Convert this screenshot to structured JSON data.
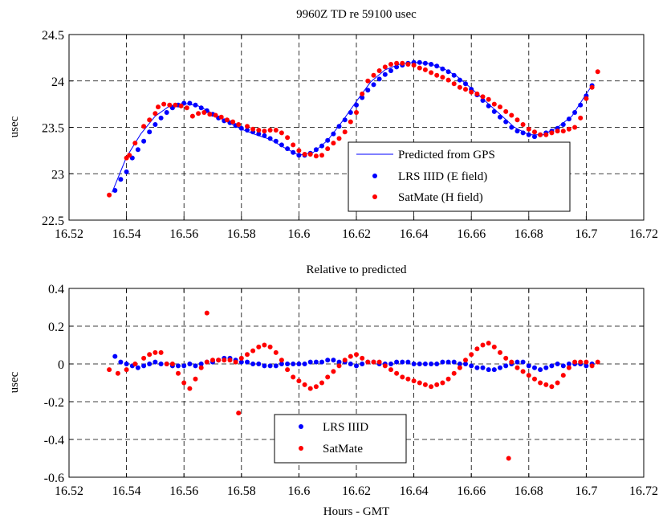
{
  "chart_data": [
    {
      "type": "scatter",
      "title": "9960Z TD re 59100 usec",
      "xlabel": "",
      "ylabel": "usec",
      "xlim": [
        16.52,
        16.72
      ],
      "ylim": [
        22.5,
        24.5
      ],
      "x_ticks": [
        "16.52",
        "16.54",
        "16.56",
        "16.58",
        "16.6",
        "16.62",
        "16.64",
        "16.66",
        "16.68",
        "16.7",
        "16.72"
      ],
      "y_ticks": [
        "22.5",
        "23",
        "23.5",
        "24",
        "24.5"
      ],
      "grid": true,
      "legend_position": "bottom-right",
      "series": [
        {
          "name": "Predicted from GPS",
          "kind": "line",
          "color": "#0000ff",
          "x": [
            16.535,
            16.54,
            16.545,
            16.55,
            16.555,
            16.56,
            16.565,
            16.57,
            16.575,
            16.58,
            16.585,
            16.59,
            16.595,
            16.6,
            16.605,
            16.61,
            16.615,
            16.62,
            16.625,
            16.63,
            16.635,
            16.64,
            16.645,
            16.65,
            16.655,
            16.66,
            16.665,
            16.67,
            16.675,
            16.68,
            16.685,
            16.69,
            16.695,
            16.7,
            16.702
          ],
          "y": [
            22.8,
            23.18,
            23.43,
            23.62,
            23.73,
            23.76,
            23.73,
            23.65,
            23.56,
            23.48,
            23.42,
            23.37,
            23.28,
            23.2,
            23.23,
            23.36,
            23.56,
            23.78,
            23.99,
            24.12,
            24.18,
            24.2,
            24.19,
            24.14,
            24.05,
            23.92,
            23.78,
            23.64,
            23.5,
            23.42,
            23.42,
            23.5,
            23.62,
            23.86,
            23.95
          ]
        },
        {
          "name": "LRS IIID (E field)",
          "kind": "scatter",
          "color": "#0000ff",
          "x": [
            16.536,
            16.538,
            16.54,
            16.542,
            16.544,
            16.546,
            16.548,
            16.55,
            16.552,
            16.554,
            16.556,
            16.558,
            16.56,
            16.562,
            16.564,
            16.566,
            16.568,
            16.57,
            16.572,
            16.574,
            16.576,
            16.578,
            16.58,
            16.582,
            16.584,
            16.586,
            16.588,
            16.59,
            16.592,
            16.594,
            16.596,
            16.598,
            16.6,
            16.602,
            16.604,
            16.606,
            16.608,
            16.61,
            16.612,
            16.614,
            16.616,
            16.618,
            16.62,
            16.622,
            16.624,
            16.626,
            16.628,
            16.63,
            16.632,
            16.634,
            16.636,
            16.638,
            16.64,
            16.642,
            16.644,
            16.646,
            16.648,
            16.65,
            16.652,
            16.654,
            16.656,
            16.658,
            16.66,
            16.662,
            16.664,
            16.666,
            16.668,
            16.67,
            16.672,
            16.674,
            16.676,
            16.678,
            16.68,
            16.682,
            16.684,
            16.686,
            16.688,
            16.69,
            16.692,
            16.694,
            16.696,
            16.698,
            16.7,
            16.702
          ],
          "y": [
            22.82,
            22.94,
            23.02,
            23.17,
            23.26,
            23.35,
            23.45,
            23.53,
            23.6,
            23.66,
            23.71,
            23.74,
            23.76,
            23.76,
            23.74,
            23.71,
            23.68,
            23.64,
            23.6,
            23.57,
            23.55,
            23.52,
            23.49,
            23.47,
            23.45,
            23.43,
            23.41,
            23.38,
            23.35,
            23.31,
            23.27,
            23.23,
            23.2,
            23.2,
            23.22,
            23.26,
            23.3,
            23.36,
            23.43,
            23.51,
            23.58,
            23.66,
            23.74,
            23.82,
            23.9,
            23.96,
            24.02,
            24.07,
            24.11,
            24.15,
            24.17,
            24.19,
            24.2,
            24.2,
            24.19,
            24.18,
            24.16,
            24.13,
            24.1,
            24.06,
            24.01,
            23.97,
            23.91,
            23.85,
            23.79,
            23.73,
            23.67,
            23.61,
            23.56,
            23.5,
            23.46,
            23.44,
            23.42,
            23.4,
            23.42,
            23.44,
            23.46,
            23.49,
            23.53,
            23.59,
            23.66,
            23.74,
            23.84,
            23.95
          ]
        },
        {
          "name": "SatMate (H field)",
          "kind": "scatter",
          "color": "#ff0000",
          "x": [
            16.534,
            16.54,
            16.541,
            16.543,
            16.546,
            16.548,
            16.55,
            16.551,
            16.553,
            16.555,
            16.557,
            16.559,
            16.561,
            16.563,
            16.565,
            16.567,
            16.569,
            16.571,
            16.573,
            16.575,
            16.577,
            16.579,
            16.582,
            16.584,
            16.586,
            16.588,
            16.59,
            16.592,
            16.594,
            16.596,
            16.598,
            16.6,
            16.602,
            16.604,
            16.606,
            16.608,
            16.61,
            16.612,
            16.614,
            16.616,
            16.618,
            16.62,
            16.622,
            16.624,
            16.626,
            16.628,
            16.63,
            16.632,
            16.634,
            16.636,
            16.638,
            16.64,
            16.642,
            16.644,
            16.646,
            16.648,
            16.65,
            16.652,
            16.654,
            16.656,
            16.658,
            16.66,
            16.662,
            16.664,
            16.666,
            16.668,
            16.67,
            16.672,
            16.674,
            16.676,
            16.678,
            16.68,
            16.682,
            16.684,
            16.686,
            16.688,
            16.69,
            16.692,
            16.694,
            16.696,
            16.698,
            16.7,
            16.702,
            16.704
          ],
          "y": [
            22.77,
            23.17,
            23.2,
            23.33,
            23.51,
            23.58,
            23.65,
            23.72,
            23.75,
            23.74,
            23.74,
            23.73,
            23.71,
            23.62,
            23.65,
            23.66,
            23.64,
            23.63,
            23.61,
            23.58,
            23.56,
            23.53,
            23.51,
            23.48,
            23.47,
            23.46,
            23.47,
            23.47,
            23.44,
            23.39,
            23.31,
            23.25,
            23.21,
            23.21,
            23.19,
            23.2,
            23.27,
            23.33,
            23.38,
            23.45,
            23.56,
            23.66,
            23.86,
            24.0,
            24.06,
            24.11,
            24.15,
            24.18,
            24.19,
            24.19,
            24.18,
            24.17,
            24.14,
            24.12,
            24.09,
            24.06,
            24.04,
            24.01,
            23.97,
            23.93,
            23.91,
            23.88,
            23.86,
            23.83,
            23.8,
            23.75,
            23.72,
            23.67,
            23.63,
            23.58,
            23.53,
            23.48,
            23.45,
            23.42,
            23.42,
            23.44,
            23.46,
            23.46,
            23.48,
            23.5,
            23.6,
            23.81,
            23.93,
            24.1
          ]
        }
      ]
    },
    {
      "type": "scatter",
      "title": "Relative to predicted",
      "xlabel": "Hours - GMT",
      "ylabel": "usec",
      "xlim": [
        16.52,
        16.72
      ],
      "ylim": [
        -0.6,
        0.4
      ],
      "x_ticks": [
        "16.52",
        "16.54",
        "16.56",
        "16.58",
        "16.6",
        "16.62",
        "16.64",
        "16.66",
        "16.68",
        "16.7",
        "16.72"
      ],
      "y_ticks": [
        "-0.6",
        "-0.4",
        "-0.2",
        "0",
        "0.2",
        "0.4"
      ],
      "grid": true,
      "legend_position": "bottom-center",
      "series": [
        {
          "name": "LRS IIID",
          "kind": "scatter",
          "color": "#0000ff",
          "x": [
            16.536,
            16.538,
            16.54,
            16.542,
            16.544,
            16.546,
            16.548,
            16.55,
            16.552,
            16.554,
            16.556,
            16.558,
            16.56,
            16.562,
            16.564,
            16.566,
            16.568,
            16.57,
            16.572,
            16.574,
            16.576,
            16.578,
            16.58,
            16.582,
            16.584,
            16.586,
            16.588,
            16.59,
            16.592,
            16.594,
            16.596,
            16.598,
            16.6,
            16.602,
            16.604,
            16.606,
            16.608,
            16.61,
            16.612,
            16.614,
            16.616,
            16.618,
            16.62,
            16.622,
            16.624,
            16.626,
            16.628,
            16.63,
            16.632,
            16.634,
            16.636,
            16.638,
            16.64,
            16.642,
            16.644,
            16.646,
            16.648,
            16.65,
            16.652,
            16.654,
            16.656,
            16.658,
            16.66,
            16.662,
            16.664,
            16.666,
            16.668,
            16.67,
            16.672,
            16.674,
            16.676,
            16.678,
            16.68,
            16.682,
            16.684,
            16.686,
            16.688,
            16.69,
            16.692,
            16.694,
            16.696,
            16.698,
            16.7,
            16.702
          ],
          "y": [
            0.04,
            0.01,
            0.0,
            -0.01,
            -0.02,
            -0.01,
            0.0,
            0.01,
            0.0,
            0.0,
            -0.01,
            -0.01,
            -0.01,
            0.0,
            -0.01,
            0.0,
            0.01,
            0.01,
            0.02,
            0.03,
            0.03,
            0.02,
            0.01,
            0.01,
            0.0,
            0.0,
            -0.01,
            -0.01,
            -0.01,
            0.0,
            0.0,
            0.0,
            0.0,
            0.0,
            0.01,
            0.01,
            0.01,
            0.02,
            0.02,
            0.01,
            0.01,
            0.0,
            -0.01,
            0.0,
            0.01,
            0.01,
            0.0,
            0.0,
            0.0,
            0.01,
            0.01,
            0.01,
            0.0,
            0.0,
            0.0,
            0.0,
            0.0,
            0.01,
            0.01,
            0.01,
            0.0,
            0.0,
            -0.01,
            -0.02,
            -0.02,
            -0.03,
            -0.03,
            -0.02,
            -0.01,
            0.0,
            0.01,
            0.01,
            -0.01,
            -0.02,
            -0.03,
            -0.02,
            -0.01,
            0.0,
            -0.01,
            0.0,
            0.0,
            0.0,
            -0.01,
            0.0
          ]
        },
        {
          "name": "SatMate",
          "kind": "scatter",
          "color": "#ff0000",
          "x": [
            16.534,
            16.537,
            16.54,
            16.543,
            16.546,
            16.548,
            16.55,
            16.552,
            16.554,
            16.556,
            16.558,
            16.56,
            16.562,
            16.564,
            16.566,
            16.568,
            16.57,
            16.572,
            16.574,
            16.576,
            16.578,
            16.58,
            16.582,
            16.584,
            16.586,
            16.588,
            16.59,
            16.592,
            16.594,
            16.596,
            16.598,
            16.6,
            16.602,
            16.604,
            16.606,
            16.608,
            16.61,
            16.612,
            16.614,
            16.616,
            16.618,
            16.62,
            16.622,
            16.624,
            16.626,
            16.628,
            16.63,
            16.632,
            16.634,
            16.636,
            16.638,
            16.64,
            16.642,
            16.644,
            16.646,
            16.648,
            16.65,
            16.652,
            16.654,
            16.656,
            16.658,
            16.66,
            16.662,
            16.664,
            16.666,
            16.668,
            16.67,
            16.672,
            16.674,
            16.676,
            16.678,
            16.68,
            16.682,
            16.684,
            16.686,
            16.688,
            16.69,
            16.692,
            16.694,
            16.696,
            16.698,
            16.7,
            16.702,
            16.704,
            16.568,
            16.579,
            16.673
          ],
          "y": [
            -0.03,
            -0.05,
            -0.03,
            0.0,
            0.03,
            0.05,
            0.06,
            0.06,
            0.0,
            0.0,
            -0.05,
            -0.1,
            -0.13,
            -0.08,
            -0.02,
            0.01,
            0.02,
            0.02,
            0.02,
            0.02,
            0.01,
            0.03,
            0.05,
            0.07,
            0.09,
            0.1,
            0.09,
            0.06,
            0.02,
            -0.03,
            -0.07,
            -0.09,
            -0.11,
            -0.13,
            -0.12,
            -0.1,
            -0.07,
            -0.04,
            -0.01,
            0.02,
            0.04,
            0.05,
            0.03,
            0.01,
            0.01,
            0.01,
            -0.01,
            -0.03,
            -0.05,
            -0.07,
            -0.08,
            -0.09,
            -0.1,
            -0.11,
            -0.12,
            -0.11,
            -0.1,
            -0.08,
            -0.05,
            -0.02,
            0.02,
            0.05,
            0.08,
            0.1,
            0.11,
            0.09,
            0.06,
            0.03,
            0.01,
            -0.02,
            -0.04,
            -0.06,
            -0.08,
            -0.1,
            -0.11,
            -0.12,
            -0.1,
            -0.06,
            -0.02,
            0.01,
            0.01,
            0.01,
            -0.01,
            0.01,
            0.27,
            -0.26,
            -0.5
          ]
        }
      ]
    }
  ]
}
